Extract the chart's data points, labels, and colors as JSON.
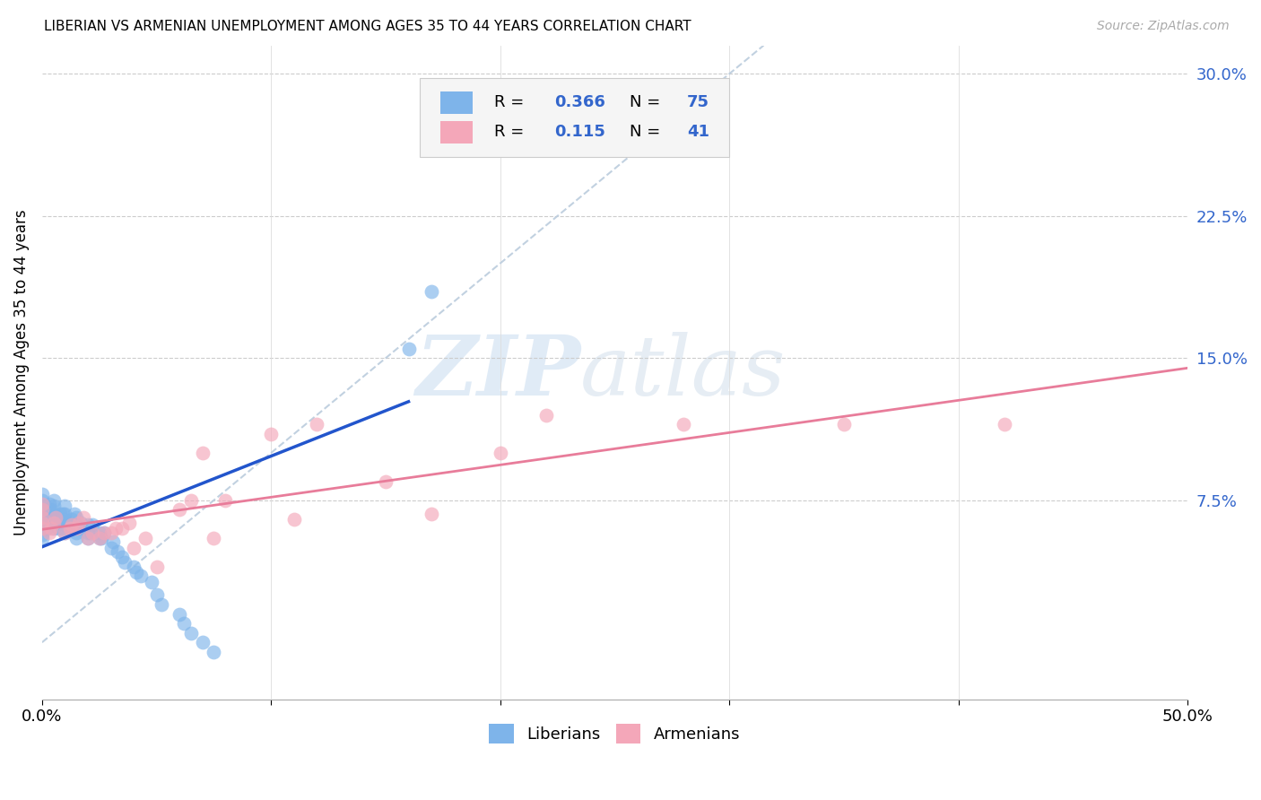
{
  "title": "LIBERIAN VS ARMENIAN UNEMPLOYMENT AMONG AGES 35 TO 44 YEARS CORRELATION CHART",
  "source": "Source: ZipAtlas.com",
  "ylabel": "Unemployment Among Ages 35 to 44 years",
  "xlim": [
    0.0,
    0.5
  ],
  "ylim": [
    -0.03,
    0.315
  ],
  "liberian_R": "0.366",
  "liberian_N": "75",
  "armenian_R": "0.115",
  "armenian_N": "41",
  "liberian_color": "#7EB4EA",
  "armenian_color": "#F4A7B9",
  "liberian_line_color": "#2255CC",
  "armenian_line_color": "#E87C9A",
  "diagonal_color": "#BBCCDD",
  "watermark_zip": "ZIP",
  "watermark_atlas": "atlas",
  "liberian_x": [
    0.0,
    0.0,
    0.0,
    0.0,
    0.0,
    0.0,
    0.0,
    0.0,
    0.0,
    0.0,
    0.002,
    0.002,
    0.003,
    0.003,
    0.003,
    0.003,
    0.004,
    0.004,
    0.004,
    0.005,
    0.005,
    0.005,
    0.005,
    0.005,
    0.005,
    0.007,
    0.007,
    0.008,
    0.008,
    0.009,
    0.009,
    0.009,
    0.01,
    0.01,
    0.01,
    0.01,
    0.01,
    0.012,
    0.013,
    0.013,
    0.014,
    0.015,
    0.015,
    0.015,
    0.015,
    0.016,
    0.017,
    0.02,
    0.02,
    0.02,
    0.021,
    0.022,
    0.025,
    0.025,
    0.026,
    0.027,
    0.03,
    0.031,
    0.033,
    0.035,
    0.036,
    0.04,
    0.041,
    0.043,
    0.048,
    0.05,
    0.052,
    0.06,
    0.062,
    0.065,
    0.07,
    0.075,
    0.16,
    0.17,
    0.185
  ],
  "liberian_y": [
    0.055,
    0.057,
    0.06,
    0.062,
    0.065,
    0.068,
    0.07,
    0.072,
    0.075,
    0.078,
    0.06,
    0.063,
    0.065,
    0.067,
    0.07,
    0.073,
    0.063,
    0.067,
    0.07,
    0.06,
    0.063,
    0.066,
    0.068,
    0.072,
    0.075,
    0.06,
    0.064,
    0.063,
    0.068,
    0.06,
    0.064,
    0.068,
    0.058,
    0.062,
    0.065,
    0.068,
    0.072,
    0.06,
    0.062,
    0.065,
    0.068,
    0.055,
    0.058,
    0.062,
    0.066,
    0.06,
    0.063,
    0.055,
    0.058,
    0.062,
    0.058,
    0.062,
    0.055,
    0.058,
    0.055,
    0.058,
    0.05,
    0.053,
    0.048,
    0.045,
    0.042,
    0.04,
    0.037,
    0.035,
    0.032,
    0.025,
    0.02,
    0.015,
    0.01,
    0.005,
    0.0,
    -0.005,
    0.155,
    0.185,
    0.275
  ],
  "armenian_x": [
    0.0,
    0.0,
    0.0,
    0.0,
    0.0,
    0.003,
    0.004,
    0.005,
    0.006,
    0.01,
    0.012,
    0.013,
    0.015,
    0.016,
    0.018,
    0.02,
    0.022,
    0.025,
    0.027,
    0.03,
    0.032,
    0.035,
    0.038,
    0.04,
    0.045,
    0.05,
    0.06,
    0.065,
    0.07,
    0.075,
    0.08,
    0.1,
    0.11,
    0.12,
    0.15,
    0.17,
    0.2,
    0.22,
    0.28,
    0.35,
    0.42
  ],
  "armenian_y": [
    0.06,
    0.063,
    0.066,
    0.07,
    0.073,
    0.058,
    0.06,
    0.063,
    0.066,
    0.058,
    0.06,
    0.062,
    0.06,
    0.063,
    0.066,
    0.055,
    0.058,
    0.055,
    0.058,
    0.058,
    0.06,
    0.06,
    0.063,
    0.05,
    0.055,
    0.04,
    0.07,
    0.075,
    0.1,
    0.055,
    0.075,
    0.11,
    0.065,
    0.115,
    0.085,
    0.068,
    0.1,
    0.12,
    0.115,
    0.115,
    0.115
  ]
}
